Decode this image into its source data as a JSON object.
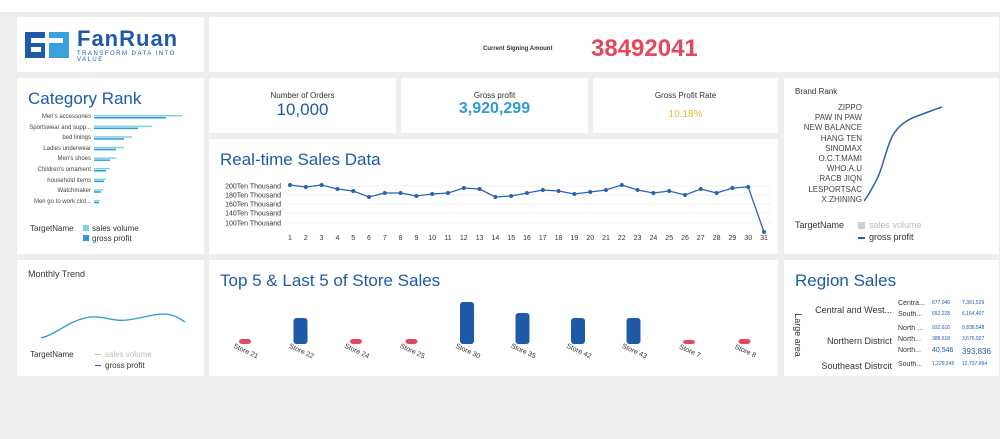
{
  "header": {
    "logo_name": "FanRuan",
    "logo_tagline": "TRANSFORM DATA INTO VALUE",
    "signing_label": "Current Signing Amount",
    "signing_value": "38492041"
  },
  "kpis": {
    "orders_label": "Number of Orders",
    "orders_value": "10,000",
    "profit_label": "Gross profit",
    "profit_value": "3,920,299",
    "rate_label": "Gross Profit Rate",
    "rate_value": "10.18%"
  },
  "category_rank": {
    "title": "Category Rank",
    "items": [
      "Men's accessories",
      "Sportswear and supp...",
      "bed linings",
      "Ladies underwear",
      "Men's shoes",
      "Children's ornament",
      "household items",
      "Watchmaker",
      "Men go to work clot..."
    ],
    "legend_name": "TargetName",
    "legend_series": [
      "sales volume",
      "gross profit"
    ]
  },
  "monthly_trend": {
    "title": "Monthly Trend",
    "legend_name": "TargetName",
    "legend_series": [
      "sales volume",
      "gross profit"
    ]
  },
  "realtime": {
    "title": "Real-time Sales Data",
    "y_ticks": [
      "200Ten Thousand",
      "180Ten Thousand",
      "160Ten Thousand",
      "140Ten Thousand",
      "100Ten Thousand"
    ],
    "x_ticks": [
      "1",
      "2",
      "3",
      "4",
      "5",
      "6",
      "7",
      "8",
      "9",
      "10",
      "11",
      "12",
      "13",
      "14",
      "15",
      "16",
      "17",
      "18",
      "19",
      "20",
      "21",
      "22",
      "23",
      "24",
      "25",
      "26",
      "27",
      "28",
      "29",
      "30",
      "31"
    ]
  },
  "brand_rank": {
    "title": "Brand Rank",
    "brands": [
      "ZIPPO",
      "PAW IN PAW",
      "NEW BALANCE",
      "HANG TEN",
      "SINOMAX",
      "O.C.T.MAMI",
      "WHO.A.U",
      "RACB JIQN",
      "LESPORTSAC",
      "X.ZHINING"
    ],
    "legend_name": "TargetName",
    "legend_series": [
      "sales volume",
      "gross profit"
    ]
  },
  "store_sales": {
    "title": "Top 5 & Last 5 of Store Sales",
    "stores": [
      "Store 21",
      "Store 22",
      "Store 24",
      "Store 25",
      "Store 30",
      "Store 35",
      "Store 42",
      "Store 43",
      "Store 7",
      "Store 8"
    ]
  },
  "region_sales": {
    "title": "Region Sales",
    "axis_label": "Large area",
    "groups": [
      {
        "name": "Central and West...",
        "rows": [
          {
            "sub": "Centra...",
            "a": "677,046",
            "b": "7,381,529"
          },
          {
            "sub": "South...",
            "a": "652,228",
            "b": "6,164,407"
          }
        ]
      },
      {
        "name": "Northern District",
        "rows": [
          {
            "sub": "North ...",
            "a": "932,616",
            "b": "9,838,548"
          },
          {
            "sub": "North...",
            "a": "388,618",
            "b": "3,675,927"
          },
          {
            "sub": "North...",
            "a": "40,546",
            "b": "393,836"
          }
        ]
      },
      {
        "name": "Southeast Distrcit",
        "rows": [
          {
            "sub": "South...",
            "a": "1,229,245",
            "b": "12,737,994"
          }
        ]
      }
    ]
  },
  "colors": {
    "accent": "#1f5aa8",
    "signing": "#e5485e",
    "profit_value": "#2e9bd6",
    "rate_value": "#f0b43c",
    "line": "#2a62b3"
  }
}
